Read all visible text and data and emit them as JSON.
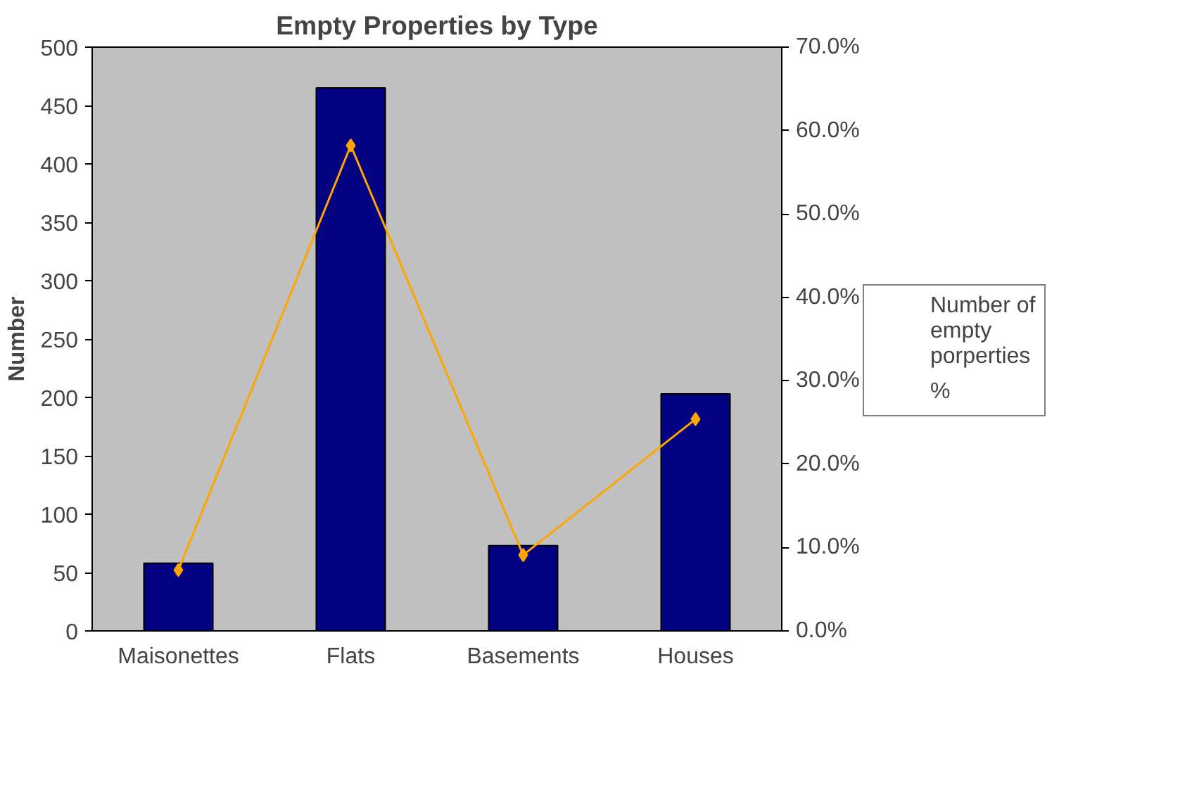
{
  "chart_data": {
    "type": "bar",
    "title": "Empty Properties by Type",
    "ylabel": "Number",
    "categories": [
      "Maisonettes",
      "Flats",
      "Basements",
      "Houses"
    ],
    "series": [
      {
        "name": "Number of empty porperties",
        "type": "bar",
        "color": "#000080",
        "values": [
          58,
          465,
          73,
          203
        ]
      },
      {
        "name": "%",
        "type": "line",
        "axis": "y2",
        "color": "#ffa500",
        "marker": "diamond",
        "values": [
          7.3,
          58.2,
          9.1,
          25.4
        ]
      }
    ],
    "ylim": [
      0,
      500
    ],
    "yticks": [
      0,
      50,
      100,
      150,
      200,
      250,
      300,
      350,
      400,
      450,
      500
    ],
    "y2lim": [
      0,
      70
    ],
    "y2ticks": [
      {
        "value": 0,
        "label": "0.0%"
      },
      {
        "value": 10,
        "label": "10.0%"
      },
      {
        "value": 20,
        "label": "20.0%"
      },
      {
        "value": 30,
        "label": "30.0%"
      },
      {
        "value": 40,
        "label": "40.0%"
      },
      {
        "value": 50,
        "label": "50.0%"
      },
      {
        "value": 60,
        "label": "60.0%"
      },
      {
        "value": 70,
        "label": "70.0%"
      }
    ],
    "grid": false,
    "legend": "right"
  }
}
